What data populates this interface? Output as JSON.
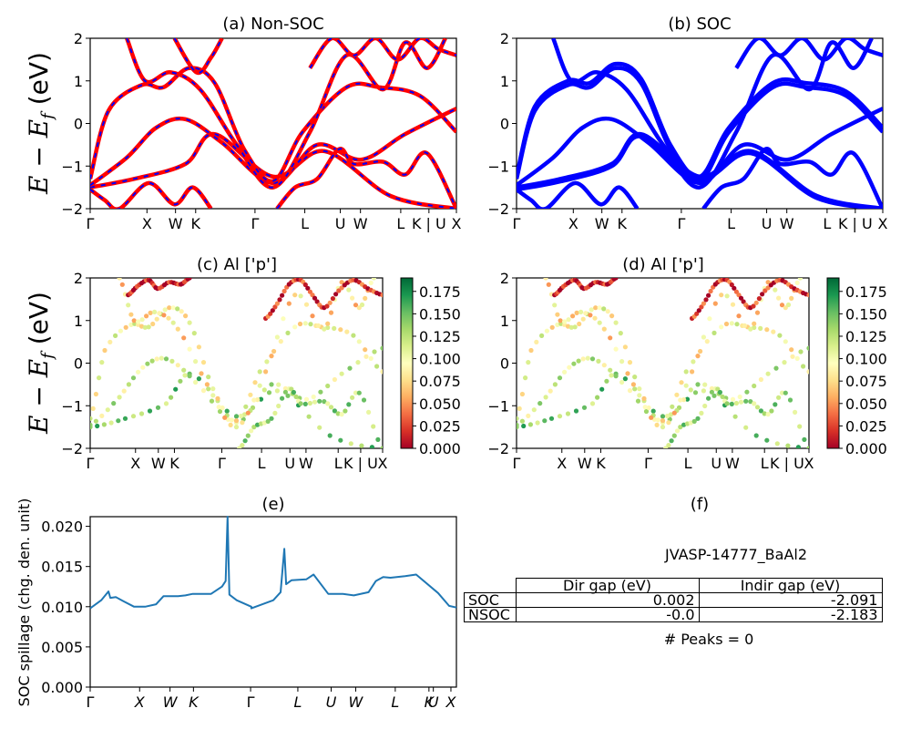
{
  "colors": {
    "nonsoc_line": "#ff0000",
    "nonsoc_dash": "#0000ff",
    "soc_line": "#0000ff",
    "spillage_line": "#1f77b4",
    "colormap": "RdYlGn"
  },
  "kpath": [
    "Γ",
    "X",
    "W",
    "K",
    "Γ",
    "L",
    "U",
    "W",
    "L",
    "K | U",
    "X"
  ],
  "kpath_e": [
    "Γ",
    "X",
    "W",
    "K",
    "Γ",
    "L",
    "U",
    "W",
    "L",
    "K",
    "U",
    "X"
  ],
  "panels": {
    "a": {
      "title": "(a) Non-SOC"
    },
    "b": {
      "title": "(b) SOC"
    },
    "c": {
      "title": "(c)  Al ['p']"
    },
    "d": {
      "title": "(d) Al ['p']"
    },
    "e": {
      "title": "(e)"
    },
    "f": {
      "title": "(f)"
    }
  },
  "ylabel_band": "E − E_f (eV)",
  "ylabel_spillage": "SOC spillage (chg. den. unit)",
  "table": {
    "material": "JVASP-14777_BaAl2",
    "headers": [
      "Dir gap (eV)",
      "Indir gap (eV)"
    ],
    "rows": [
      {
        "label": "SOC",
        "dir": "0.002",
        "indir": "-2.091"
      },
      {
        "label": "NSOC",
        "dir": "-0.0",
        "indir": "-2.183"
      }
    ],
    "peaks": "# Peaks = 0"
  },
  "chart_data": [
    {
      "type": "line",
      "title": "(a) Non-SOC",
      "ylabel": "E − E_f (eV)",
      "ylim": [
        -2,
        2
      ],
      "yticks": [
        "−2",
        "−1",
        "0",
        "1",
        "2"
      ],
      "xticks": [
        "Γ",
        "X",
        "W",
        "K",
        "Γ",
        "L",
        "U",
        "W",
        "L",
        "K | U",
        "X"
      ],
      "series": [
        {
          "x": [
            0.0,
            0.12,
            0.26,
            0.34,
            0.5,
            0.64,
            0.82,
            1.0
          ],
          "values": [
            -1.5,
            -1.3,
            -0.95,
            -0.25,
            -1.25,
            -0.65,
            -1.7,
            -2.0
          ]
        },
        {
          "x": [
            0.0,
            0.1,
            0.18,
            0.26,
            0.36,
            0.5,
            0.62,
            0.74,
            0.86,
            1.0
          ],
          "values": [
            -1.45,
            -0.8,
            -0.1,
            0.1,
            -0.45,
            -1.4,
            -0.5,
            -0.85,
            -0.25,
            0.35
          ]
        },
        {
          "x": [
            0.0,
            0.05,
            0.14,
            0.2,
            0.27,
            0.34,
            0.42,
            0.5,
            0.58,
            0.7,
            0.79,
            0.9,
            1.0
          ],
          "values": [
            -1.3,
            0.3,
            0.9,
            0.85,
            1.3,
            0.95,
            -0.6,
            -1.35,
            -0.2,
            0.85,
            0.85,
            0.65,
            -0.2
          ]
        },
        {
          "x": [
            0.1,
            0.15,
            0.22,
            0.3,
            0.4,
            0.5,
            0.6,
            0.7,
            0.8,
            0.86,
            0.92,
            0.97
          ],
          "values": [
            2.0,
            1.0,
            1.2,
            0.8,
            -0.5,
            -1.5,
            -0.2,
            1.6,
            0.8,
            1.9,
            1.3,
            2.0
          ]
        },
        {
          "x": [
            0.0,
            0.04,
            0.08,
            0.16,
            0.23,
            0.28,
            0.33
          ],
          "values": [
            -1.55,
            -1.8,
            -2.0,
            -1.4,
            -1.9,
            -1.5,
            -2.0
          ]
        },
        {
          "x": [
            0.51,
            0.56,
            0.62,
            0.68,
            0.72,
            0.8,
            0.86,
            0.92,
            1.0
          ],
          "values": [
            -2.0,
            -1.5,
            -1.3,
            -0.6,
            -0.95,
            -0.9,
            -1.2,
            -0.7,
            -2.0
          ]
        },
        {
          "x": [
            0.23,
            0.29,
            0.33,
            0.36
          ],
          "values": [
            2.0,
            1.2,
            1.55,
            2.0
          ]
        },
        {
          "x": [
            0.6,
            0.66,
            0.72,
            0.78,
            0.84,
            0.9,
            0.95,
            1.0
          ],
          "values": [
            1.3,
            2.0,
            1.6,
            2.0,
            1.5,
            2.0,
            1.75,
            1.6
          ]
        }
      ]
    },
    {
      "type": "line",
      "title": "(b) SOC",
      "ylim": [
        -2,
        2
      ],
      "yticks": [
        "−2",
        "−1",
        "0",
        "1",
        "2"
      ],
      "xticks": [
        "Γ",
        "X",
        "W",
        "K",
        "Γ",
        "L",
        "U",
        "W",
        "L",
        "K | U",
        "X"
      ],
      "series": [
        {
          "x": [
            0.0,
            0.12,
            0.26,
            0.34,
            0.5,
            0.64,
            0.82,
            1.0
          ],
          "values": [
            -1.5,
            -1.3,
            -0.95,
            -0.25,
            -1.25,
            -0.65,
            -1.7,
            -2.0
          ]
        },
        {
          "x": [
            0.0,
            0.12,
            0.26,
            0.34,
            0.5,
            0.64,
            0.82,
            1.0
          ],
          "values": [
            -1.55,
            -1.36,
            -1.0,
            -0.3,
            -1.3,
            -0.7,
            -1.75,
            -2.0
          ]
        },
        {
          "x": [
            0.0,
            0.1,
            0.18,
            0.26,
            0.36,
            0.5,
            0.62,
            0.74,
            0.86,
            1.0
          ],
          "values": [
            -1.45,
            -0.8,
            -0.1,
            0.1,
            -0.45,
            -1.4,
            -0.5,
            -0.85,
            -0.25,
            0.35
          ]
        },
        {
          "x": [
            0.0,
            0.05,
            0.14,
            0.2,
            0.27,
            0.34,
            0.42,
            0.5,
            0.58,
            0.7,
            0.79,
            0.9,
            1.0
          ],
          "values": [
            -1.3,
            0.3,
            0.9,
            0.85,
            1.3,
            0.95,
            -0.6,
            -1.35,
            -0.2,
            0.85,
            0.85,
            0.65,
            -0.2
          ]
        },
        {
          "x": [
            0.0,
            0.05,
            0.14,
            0.2,
            0.27,
            0.34,
            0.42,
            0.5,
            0.58,
            0.7,
            0.79,
            0.9,
            1.0
          ],
          "values": [
            -1.25,
            0.4,
            1.0,
            0.95,
            1.4,
            1.05,
            -0.5,
            -1.25,
            -0.1,
            0.95,
            0.95,
            0.75,
            -0.1
          ]
        },
        {
          "x": [
            0.1,
            0.15,
            0.22,
            0.3,
            0.4,
            0.5,
            0.6,
            0.7,
            0.8,
            0.86,
            0.92,
            0.97
          ],
          "values": [
            2.0,
            1.0,
            1.2,
            0.8,
            -0.5,
            -1.5,
            -0.2,
            1.6,
            0.8,
            1.9,
            1.3,
            2.0
          ]
        },
        {
          "x": [
            0.0,
            0.04,
            0.08,
            0.16,
            0.23,
            0.28,
            0.33
          ],
          "values": [
            -1.55,
            -1.8,
            -2.0,
            -1.4,
            -1.9,
            -1.5,
            -2.0
          ]
        },
        {
          "x": [
            0.51,
            0.56,
            0.62,
            0.68,
            0.72,
            0.8,
            0.86,
            0.92,
            1.0
          ],
          "values": [
            -2.0,
            -1.5,
            -1.3,
            -0.6,
            -0.95,
            -0.9,
            -1.2,
            -0.7,
            -2.0
          ]
        },
        {
          "x": [
            0.6,
            0.66,
            0.72,
            0.78,
            0.84,
            0.9,
            0.95,
            1.0
          ],
          "values": [
            1.3,
            2.0,
            1.6,
            2.0,
            1.5,
            2.0,
            1.75,
            1.6
          ]
        }
      ]
    },
    {
      "type": "scatter",
      "title": "(c)  Al ['p']",
      "ylabel": "E − E_f (eV)",
      "ylim": [
        -2,
        2
      ],
      "yticks": [
        "−2",
        "−1",
        "0",
        "1",
        "2"
      ],
      "xticks": [
        "Γ",
        "X",
        "W",
        "K",
        "Γ",
        "L",
        "U",
        "W",
        "L",
        "K | U",
        "X"
      ],
      "colorbar": {
        "range": [
          0,
          0.19
        ],
        "ticks": [
          "0.000",
          "0.025",
          "0.050",
          "0.075",
          "0.100",
          "0.125",
          "0.150",
          "0.175"
        ]
      },
      "series": [
        {
          "x": [
            0.0,
            0.12,
            0.26,
            0.34,
            0.5,
            0.64,
            0.82,
            1.0
          ],
          "values": [
            -1.5,
            -1.3,
            -0.95,
            -0.25,
            -1.25,
            -0.65,
            -1.7,
            -2.0
          ],
          "weight": 0.14
        },
        {
          "x": [
            0.0,
            0.1,
            0.18,
            0.26,
            0.36,
            0.5,
            0.62,
            0.74,
            0.86,
            1.0
          ],
          "values": [
            -1.45,
            -0.8,
            -0.1,
            0.1,
            -0.45,
            -1.4,
            -0.5,
            -0.85,
            -0.25,
            0.35
          ],
          "weight": 0.115
        },
        {
          "x": [
            0.0,
            0.05,
            0.14,
            0.2,
            0.27,
            0.34,
            0.42,
            0.5,
            0.58,
            0.7,
            0.79,
            0.9,
            1.0
          ],
          "values": [
            -1.3,
            0.3,
            0.9,
            0.85,
            1.3,
            0.95,
            -0.6,
            -1.35,
            -0.2,
            0.85,
            0.85,
            0.65,
            -0.2
          ],
          "weight": 0.095
        },
        {
          "x": [
            0.1,
            0.15,
            0.22,
            0.3,
            0.4,
            0.5,
            0.6,
            0.7,
            0.8,
            0.86,
            0.92,
            0.97
          ],
          "values": [
            2.0,
            1.0,
            1.2,
            0.8,
            -0.5,
            -1.5,
            -0.2,
            1.6,
            0.8,
            1.9,
            1.3,
            2.0
          ],
          "weight": 0.08
        },
        {
          "x": [
            0.51,
            0.56,
            0.62,
            0.68,
            0.72,
            0.8,
            0.86,
            0.92,
            1.0
          ],
          "values": [
            -2.0,
            -1.5,
            -1.3,
            -0.6,
            -0.95,
            -0.9,
            -1.2,
            -0.7,
            -2.0
          ],
          "weight": 0.13
        },
        {
          "x": [
            0.13,
            0.16,
            0.2,
            0.23,
            0.27,
            0.31,
            0.34
          ],
          "values": [
            1.6,
            1.8,
            1.95,
            1.75,
            1.9,
            1.85,
            2.0
          ],
          "weight": 0.01
        },
        {
          "x": [
            0.6,
            0.64,
            0.68,
            0.72,
            0.76,
            0.8,
            0.85,
            0.9,
            0.95,
            1.0
          ],
          "values": [
            1.05,
            1.4,
            1.85,
            1.95,
            1.6,
            1.3,
            1.7,
            1.95,
            1.75,
            1.6
          ],
          "weight": 0.02
        }
      ]
    },
    {
      "type": "scatter",
      "title": "(d) Al ['p']",
      "ylim": [
        -2,
        2
      ],
      "yticks": [
        "−2",
        "−1",
        "0",
        "1",
        "2"
      ],
      "xticks": [
        "Γ",
        "X",
        "W",
        "K",
        "Γ",
        "L",
        "U",
        "W",
        "L",
        "K | U",
        "X"
      ],
      "colorbar": {
        "range": [
          0,
          0.19
        ],
        "ticks": [
          "0.000",
          "0.025",
          "0.050",
          "0.075",
          "0.100",
          "0.125",
          "0.150",
          "0.175"
        ]
      },
      "series": [
        {
          "x": [
            0.0,
            0.12,
            0.26,
            0.34,
            0.5,
            0.64,
            0.82,
            1.0
          ],
          "values": [
            -1.5,
            -1.3,
            -0.95,
            -0.25,
            -1.25,
            -0.65,
            -1.7,
            -2.0
          ],
          "weight": 0.14
        },
        {
          "x": [
            0.0,
            0.1,
            0.18,
            0.26,
            0.36,
            0.5,
            0.62,
            0.74,
            0.86,
            1.0
          ],
          "values": [
            -1.45,
            -0.8,
            -0.1,
            0.1,
            -0.45,
            -1.4,
            -0.5,
            -0.85,
            -0.25,
            0.35
          ],
          "weight": 0.115
        },
        {
          "x": [
            0.0,
            0.05,
            0.14,
            0.2,
            0.27,
            0.34,
            0.42,
            0.5,
            0.58,
            0.7,
            0.79,
            0.9,
            1.0
          ],
          "values": [
            -1.3,
            0.3,
            0.9,
            0.85,
            1.3,
            0.95,
            -0.6,
            -1.35,
            -0.2,
            0.85,
            0.85,
            0.65,
            -0.2
          ],
          "weight": 0.095
        },
        {
          "x": [
            0.1,
            0.15,
            0.22,
            0.3,
            0.4,
            0.5,
            0.6,
            0.7,
            0.8,
            0.86,
            0.92,
            0.97
          ],
          "values": [
            2.0,
            1.0,
            1.2,
            0.8,
            -0.5,
            -1.5,
            -0.2,
            1.6,
            0.8,
            1.9,
            1.3,
            2.0
          ],
          "weight": 0.08
        },
        {
          "x": [
            0.51,
            0.56,
            0.62,
            0.68,
            0.72,
            0.8,
            0.86,
            0.92,
            1.0
          ],
          "values": [
            -2.0,
            -1.5,
            -1.3,
            -0.6,
            -0.95,
            -0.9,
            -1.2,
            -0.7,
            -2.0
          ],
          "weight": 0.13
        },
        {
          "x": [
            0.13,
            0.16,
            0.2,
            0.23,
            0.27,
            0.31,
            0.34
          ],
          "values": [
            1.6,
            1.8,
            1.95,
            1.75,
            1.9,
            1.85,
            2.0
          ],
          "weight": 0.01
        },
        {
          "x": [
            0.6,
            0.64,
            0.68,
            0.72,
            0.76,
            0.8,
            0.85,
            0.9,
            0.95,
            1.0
          ],
          "values": [
            1.05,
            1.4,
            1.85,
            1.95,
            1.6,
            1.3,
            1.7,
            1.95,
            1.75,
            1.6
          ],
          "weight": 0.02
        }
      ]
    },
    {
      "type": "line",
      "title": "(e)",
      "ylabel": "SOC spillage (chg. den. unit)",
      "ylim": [
        0,
        0.0212
      ],
      "yticks": [
        "0.000",
        "0.005",
        "0.010",
        "0.015",
        "0.020"
      ],
      "xticks": [
        "Γ",
        "X",
        "W",
        "K",
        "Γ",
        "L",
        "U",
        "W",
        "L",
        "K",
        "U",
        "X"
      ],
      "series": [
        {
          "x": [
            0.0,
            0.03,
            0.05,
            0.055,
            0.07,
            0.09,
            0.12,
            0.15,
            0.18,
            0.2,
            0.24,
            0.26,
            0.28,
            0.33,
            0.36,
            0.37,
            0.375,
            0.38,
            0.4,
            0.44,
            0.44,
            0.5,
            0.52,
            0.53,
            0.535,
            0.55,
            0.59,
            0.61,
            0.65,
            0.69,
            0.72,
            0.76,
            0.78,
            0.8,
            0.82,
            0.86,
            0.89,
            0.95,
            0.98,
            1.0
          ],
          "values": [
            0.0098,
            0.0108,
            0.0119,
            0.0111,
            0.0112,
            0.0107,
            0.01,
            0.01,
            0.0103,
            0.0113,
            0.0113,
            0.0114,
            0.0116,
            0.0116,
            0.0125,
            0.0132,
            0.0212,
            0.0115,
            0.0108,
            0.01,
            0.0098,
            0.0108,
            0.0118,
            0.0172,
            0.0128,
            0.0133,
            0.0134,
            0.014,
            0.0116,
            0.0116,
            0.0114,
            0.0118,
            0.0132,
            0.0137,
            0.0136,
            0.0138,
            0.014,
            0.0117,
            0.0101,
            0.0099
          ]
        }
      ]
    }
  ]
}
